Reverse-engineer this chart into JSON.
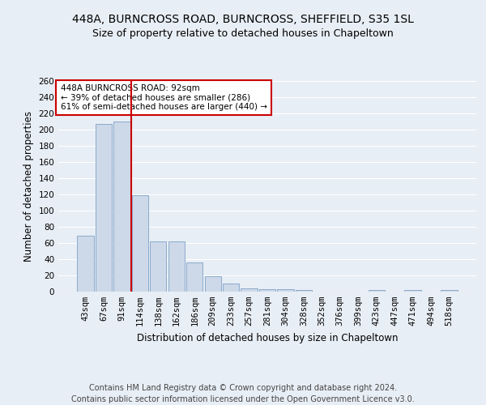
{
  "title1": "448A, BURNCROSS ROAD, BURNCROSS, SHEFFIELD, S35 1SL",
  "title2": "Size of property relative to detached houses in Chapeltown",
  "xlabel": "Distribution of detached houses by size in Chapeltown",
  "ylabel": "Number of detached properties",
  "footer1": "Contains HM Land Registry data © Crown copyright and database right 2024.",
  "footer2": "Contains public sector information licensed under the Open Government Licence v3.0.",
  "categories": [
    "43sqm",
    "67sqm",
    "91sqm",
    "114sqm",
    "138sqm",
    "162sqm",
    "186sqm",
    "209sqm",
    "233sqm",
    "257sqm",
    "281sqm",
    "304sqm",
    "328sqm",
    "352sqm",
    "376sqm",
    "399sqm",
    "423sqm",
    "447sqm",
    "471sqm",
    "494sqm",
    "518sqm"
  ],
  "values": [
    69,
    207,
    210,
    119,
    62,
    62,
    36,
    19,
    10,
    4,
    3,
    3,
    2,
    0,
    0,
    0,
    2,
    0,
    2,
    0,
    2
  ],
  "bar_color": "#cdd8e8",
  "bar_edge_color": "#8aabcc",
  "vline_color": "#cc0000",
  "annotation_text": "448A BURNCROSS ROAD: 92sqm\n← 39% of detached houses are smaller (286)\n61% of semi-detached houses are larger (440) →",
  "annotation_box_color": "white",
  "annotation_box_edge": "#cc0000",
  "ylim": [
    0,
    260
  ],
  "yticks": [
    0,
    20,
    40,
    60,
    80,
    100,
    120,
    140,
    160,
    180,
    200,
    220,
    240,
    260
  ],
  "bg_color": "#e8eef5",
  "grid_color": "white",
  "title_fontsize": 10,
  "subtitle_fontsize": 9,
  "axis_label_fontsize": 8.5,
  "tick_fontsize": 7.5,
  "footer_fontsize": 7
}
